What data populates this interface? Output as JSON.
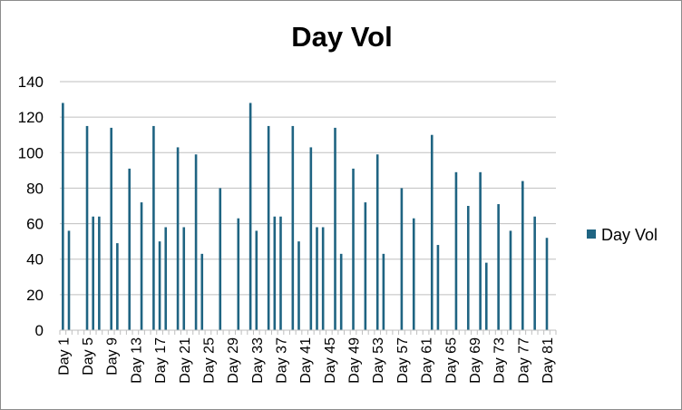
{
  "chart_data": {
    "type": "bar",
    "title": "Day Vol",
    "xlabel": "",
    "ylabel": "",
    "ylim": [
      0,
      140
    ],
    "y_ticks": [
      0,
      20,
      40,
      60,
      80,
      100,
      120,
      140
    ],
    "grid": true,
    "legend_position": "right",
    "bar_color": "#1f6482",
    "categories": [
      "Day 1",
      "Day 2",
      "Day 3",
      "Day 4",
      "Day 5",
      "Day 6",
      "Day 7",
      "Day 8",
      "Day 9",
      "Day 10",
      "Day 11",
      "Day 12",
      "Day 13",
      "Day 14",
      "Day 15",
      "Day 16",
      "Day 17",
      "Day 18",
      "Day 19",
      "Day 20",
      "Day 21",
      "Day 22",
      "Day 23",
      "Day 24",
      "Day 25",
      "Day 26",
      "Day 27",
      "Day 28",
      "Day 29",
      "Day 30",
      "Day 31",
      "Day 32",
      "Day 33",
      "Day 34",
      "Day 35",
      "Day 36",
      "Day 37",
      "Day 38",
      "Day 39",
      "Day 40",
      "Day 41",
      "Day 42",
      "Day 43",
      "Day 44",
      "Day 45",
      "Day 46",
      "Day 47",
      "Day 48",
      "Day 49",
      "Day 50",
      "Day 51",
      "Day 52",
      "Day 53",
      "Day 54",
      "Day 55",
      "Day 56",
      "Day 57",
      "Day 58",
      "Day 59",
      "Day 60",
      "Day 61",
      "Day 62",
      "Day 63",
      "Day 64",
      "Day 65",
      "Day 66",
      "Day 67",
      "Day 68",
      "Day 69",
      "Day 70",
      "Day 71",
      "Day 72",
      "Day 73",
      "Day 74",
      "Day 75",
      "Day 76",
      "Day 77",
      "Day 78",
      "Day 79",
      "Day 80",
      "Day 81",
      "Day 82"
    ],
    "visible_category_labels": [
      "Day 1",
      "Day 5",
      "Day 9",
      "Day 13",
      "Day 17",
      "Day 21",
      "Day 25",
      "Day 29",
      "Day 33",
      "Day 37",
      "Day 41",
      "Day 45",
      "Day 49",
      "Day 53",
      "Day 57",
      "Day 61",
      "Day 65",
      "Day 69",
      "Day 73",
      "Day 77",
      "Day 81"
    ],
    "series": [
      {
        "name": "Day Vol",
        "values": [
          128,
          56,
          null,
          null,
          115,
          64,
          64,
          null,
          114,
          49,
          null,
          91,
          null,
          72,
          null,
          115,
          50,
          58,
          null,
          103,
          58,
          null,
          99,
          43,
          null,
          null,
          80,
          null,
          null,
          63,
          null,
          128,
          56,
          null,
          115,
          64,
          64,
          null,
          115,
          50,
          null,
          103,
          58,
          58,
          null,
          114,
          43,
          null,
          91,
          null,
          72,
          null,
          99,
          43,
          null,
          null,
          80,
          null,
          63,
          null,
          null,
          110,
          48,
          null,
          null,
          89,
          null,
          70,
          null,
          89,
          38,
          null,
          71,
          null,
          56,
          null,
          84,
          null,
          64,
          null,
          52,
          null
        ]
      }
    ]
  }
}
